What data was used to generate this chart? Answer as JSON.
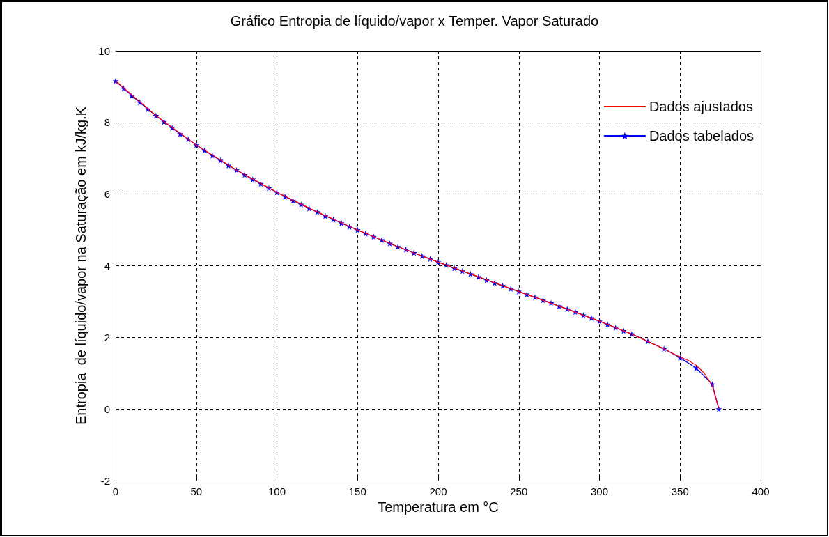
{
  "chart_data": {
    "type": "line",
    "title": "Gráfico Entropia de líquido/vapor x Temper. Vapor Saturado",
    "xlabel": "Temperatura em °C",
    "ylabel": "Entropia  de líquido/vapor na Saturação em kJ/kg.K",
    "xlim": [
      0,
      400
    ],
    "xticks": [
      0,
      50,
      100,
      150,
      200,
      250,
      300,
      350,
      400
    ],
    "ylim": [
      -2,
      10
    ],
    "yticks": [
      -2,
      0,
      2,
      4,
      6,
      8,
      10
    ],
    "grid": true,
    "legend": "top right",
    "line_style": "solid",
    "series": [
      {
        "name": "Dados ajustados",
        "color": "#ff0000",
        "marker": "none",
        "x": [
          0,
          25,
          50,
          75,
          100,
          125,
          150,
          175,
          200,
          225,
          250,
          275,
          300,
          320,
          340,
          345,
          350,
          355,
          360,
          365,
          370,
          374
        ],
        "values": [
          9.16,
          8.19,
          7.37,
          6.67,
          6.05,
          5.5,
          5.0,
          4.53,
          4.1,
          3.69,
          3.28,
          2.87,
          2.45,
          2.09,
          1.68,
          1.56,
          1.45,
          1.36,
          1.22,
          1.0,
          0.65,
          0
        ]
      },
      {
        "name": "Dados tabelados",
        "color": "#0000ff",
        "marker": "star",
        "x": [
          0,
          5,
          10,
          15,
          20,
          25,
          30,
          35,
          40,
          45,
          50,
          55,
          60,
          65,
          70,
          75,
          80,
          85,
          90,
          95,
          100,
          105,
          110,
          115,
          120,
          125,
          130,
          135,
          140,
          145,
          150,
          155,
          160,
          165,
          170,
          175,
          180,
          185,
          190,
          195,
          200,
          205,
          210,
          215,
          220,
          225,
          230,
          235,
          240,
          245,
          250,
          255,
          260,
          265,
          270,
          275,
          280,
          285,
          290,
          295,
          300,
          305,
          310,
          315,
          320,
          330,
          340,
          350,
          360,
          370,
          374
        ],
        "values": [
          9.16,
          8.95,
          8.75,
          8.56,
          8.37,
          8.19,
          8.02,
          7.85,
          7.68,
          7.53,
          7.37,
          7.22,
          7.08,
          6.94,
          6.8,
          6.67,
          6.54,
          6.41,
          6.29,
          6.17,
          6.05,
          5.93,
          5.82,
          5.71,
          5.6,
          5.5,
          5.39,
          5.29,
          5.19,
          5.09,
          5.0,
          4.9,
          4.81,
          4.72,
          4.62,
          4.53,
          4.45,
          4.36,
          4.27,
          4.19,
          4.1,
          4.02,
          3.93,
          3.85,
          3.77,
          3.69,
          3.6,
          3.52,
          3.44,
          3.36,
          3.28,
          3.2,
          3.12,
          3.04,
          2.96,
          2.87,
          2.79,
          2.71,
          2.62,
          2.54,
          2.45,
          2.36,
          2.27,
          2.18,
          2.09,
          1.89,
          1.68,
          1.43,
          1.14,
          0.69,
          0
        ]
      }
    ]
  }
}
